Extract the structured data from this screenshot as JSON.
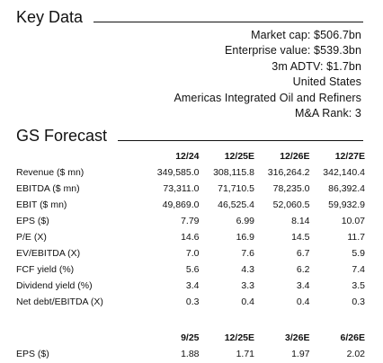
{
  "key_data": {
    "title": "Key Data",
    "lines": [
      "Market cap: $506.7bn",
      "Enterprise value: $539.3bn",
      "3m ADTV: $1.7bn",
      "United States",
      "Americas Integrated Oil and Refiners",
      "M&A Rank: 3"
    ]
  },
  "gs_forecast": {
    "title": "GS Forecast",
    "columns": [
      "12/24",
      "12/25E",
      "12/26E",
      "12/27E"
    ],
    "rows": [
      {
        "label": "Revenue ($ mn)",
        "values": [
          "349,585.0",
          "308,115.8",
          "316,264.2",
          "342,140.4"
        ]
      },
      {
        "label": "EBITDA ($ mn)",
        "values": [
          "73,311.0",
          "71,710.5",
          "78,235.0",
          "86,392.4"
        ]
      },
      {
        "label": "EBIT ($ mn)",
        "values": [
          "49,869.0",
          "46,525.4",
          "52,060.5",
          "59,932.9"
        ]
      },
      {
        "label": "EPS ($)",
        "values": [
          "7.79",
          "6.99",
          "8.14",
          "10.07"
        ]
      },
      {
        "label": "P/E (X)",
        "values": [
          "14.6",
          "16.9",
          "14.5",
          "11.7"
        ]
      },
      {
        "label": "EV/EBITDA (X)",
        "values": [
          "7.0",
          "7.6",
          "6.7",
          "5.9"
        ]
      },
      {
        "label": "FCF yield (%)",
        "values": [
          "5.6",
          "4.3",
          "6.2",
          "7.4"
        ]
      },
      {
        "label": "Dividend yield (%)",
        "values": [
          "3.4",
          "3.3",
          "3.4",
          "3.5"
        ]
      },
      {
        "label": "Net debt/EBITDA (X)",
        "values": [
          "0.3",
          "0.4",
          "0.4",
          "0.3"
        ]
      }
    ]
  },
  "eps_quarterly": {
    "columns": [
      "9/25",
      "12/25E",
      "3/26E",
      "6/26E"
    ],
    "rows": [
      {
        "label": "EPS ($)",
        "values": [
          "1.88",
          "1.71",
          "1.97",
          "2.02"
        ]
      }
    ]
  }
}
